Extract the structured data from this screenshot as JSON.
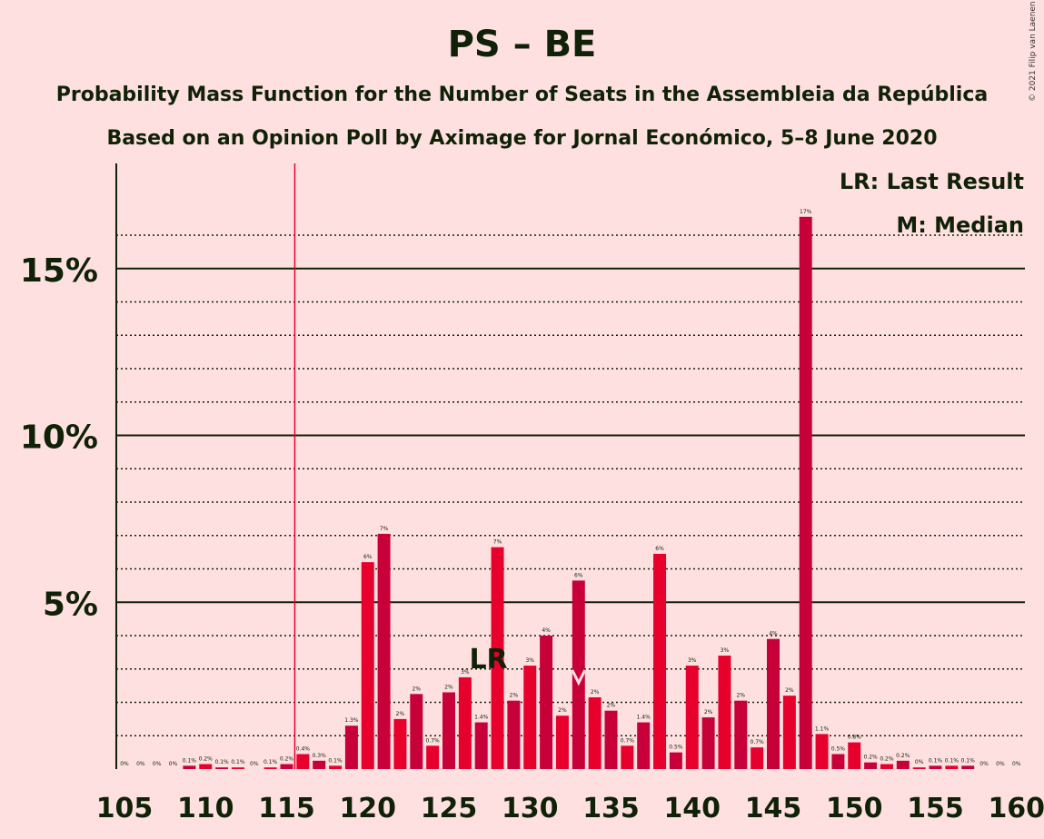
{
  "title": "PS – BE",
  "subtitle_1": "Probability Mass Function for the Number of Seats in the Assembleia da República",
  "subtitle_2": "Based on an Opinion Poll by Aximage for Jornal Económico, 5–8 June 2020",
  "copyright": "© 2021 Filip van Laenen",
  "colors": {
    "background": "#ffe0e0",
    "bar_dark": "#c8003a",
    "bar_bright": "#e8002d",
    "majority_line": "#e8002d",
    "text": "#0f2106"
  },
  "chart_data": {
    "type": "bar",
    "x": [
      105,
      106,
      107,
      108,
      109,
      110,
      111,
      112,
      113,
      114,
      115,
      116,
      117,
      118,
      119,
      120,
      121,
      122,
      123,
      124,
      125,
      126,
      127,
      128,
      129,
      130,
      131,
      132,
      133,
      134,
      135,
      136,
      137,
      138,
      139,
      140,
      141,
      142,
      143,
      144,
      145,
      146,
      147,
      148,
      149,
      150,
      151,
      152,
      153,
      154,
      155,
      156,
      157,
      158,
      159,
      160
    ],
    "values": [
      0,
      0,
      0,
      0,
      0.1,
      0.15,
      0.05,
      0.05,
      0,
      0.05,
      0.15,
      0.45,
      0.25,
      0.1,
      1.3,
      6.2,
      7.05,
      1.5,
      2.25,
      0.7,
      2.3,
      2.75,
      1.4,
      6.65,
      2.05,
      3.1,
      4.0,
      1.6,
      5.65,
      2.15,
      1.75,
      0.7,
      1.4,
      6.45,
      0.5,
      3.1,
      1.55,
      3.4,
      2.05,
      0.65,
      3.9,
      2.2,
      16.55,
      1.05,
      0.45,
      0.8,
      0.2,
      0.15,
      0.25,
      0.05,
      0.1,
      0.1,
      0.1,
      0,
      0,
      0
    ],
    "labels": [
      "0%",
      "0%",
      "0%",
      "0%",
      "0.1%",
      "0.2%",
      "0.1%",
      "0.1%",
      "0%",
      "0.1%",
      "0.2%",
      "0.4%",
      "0.3%",
      "0.1%",
      "1.3%",
      "6%",
      "7%",
      "2%",
      "2%",
      "0.7%",
      "2%",
      "3%",
      "1.4%",
      "7%",
      "2%",
      "3%",
      "4%",
      "2%",
      "6%",
      "2%",
      "2%",
      "0.7%",
      "1.4%",
      "6%",
      "0.5%",
      "3%",
      "2%",
      "3%",
      "2%",
      "0.7%",
      "4%",
      "2%",
      "17%",
      "1.1%",
      "0.5%",
      "0.8%",
      "0.2%",
      "0.2%",
      "0.2%",
      "0%",
      "0.1%",
      "0.1%",
      "0.1%",
      "0%",
      "0%",
      "0%"
    ],
    "xticks": [
      "105",
      "110",
      "115",
      "120",
      "125",
      "130",
      "135",
      "140",
      "145",
      "150",
      "155",
      "160"
    ],
    "yticks": [
      "5%",
      "10%",
      "15%"
    ],
    "ylim": [
      0,
      18.8
    ],
    "majority_line_at": 116,
    "last_result_at": 128,
    "median_at": 133,
    "last_result_marker": "LR",
    "legend": [
      "LR: Last Result",
      "M: Median"
    ]
  }
}
